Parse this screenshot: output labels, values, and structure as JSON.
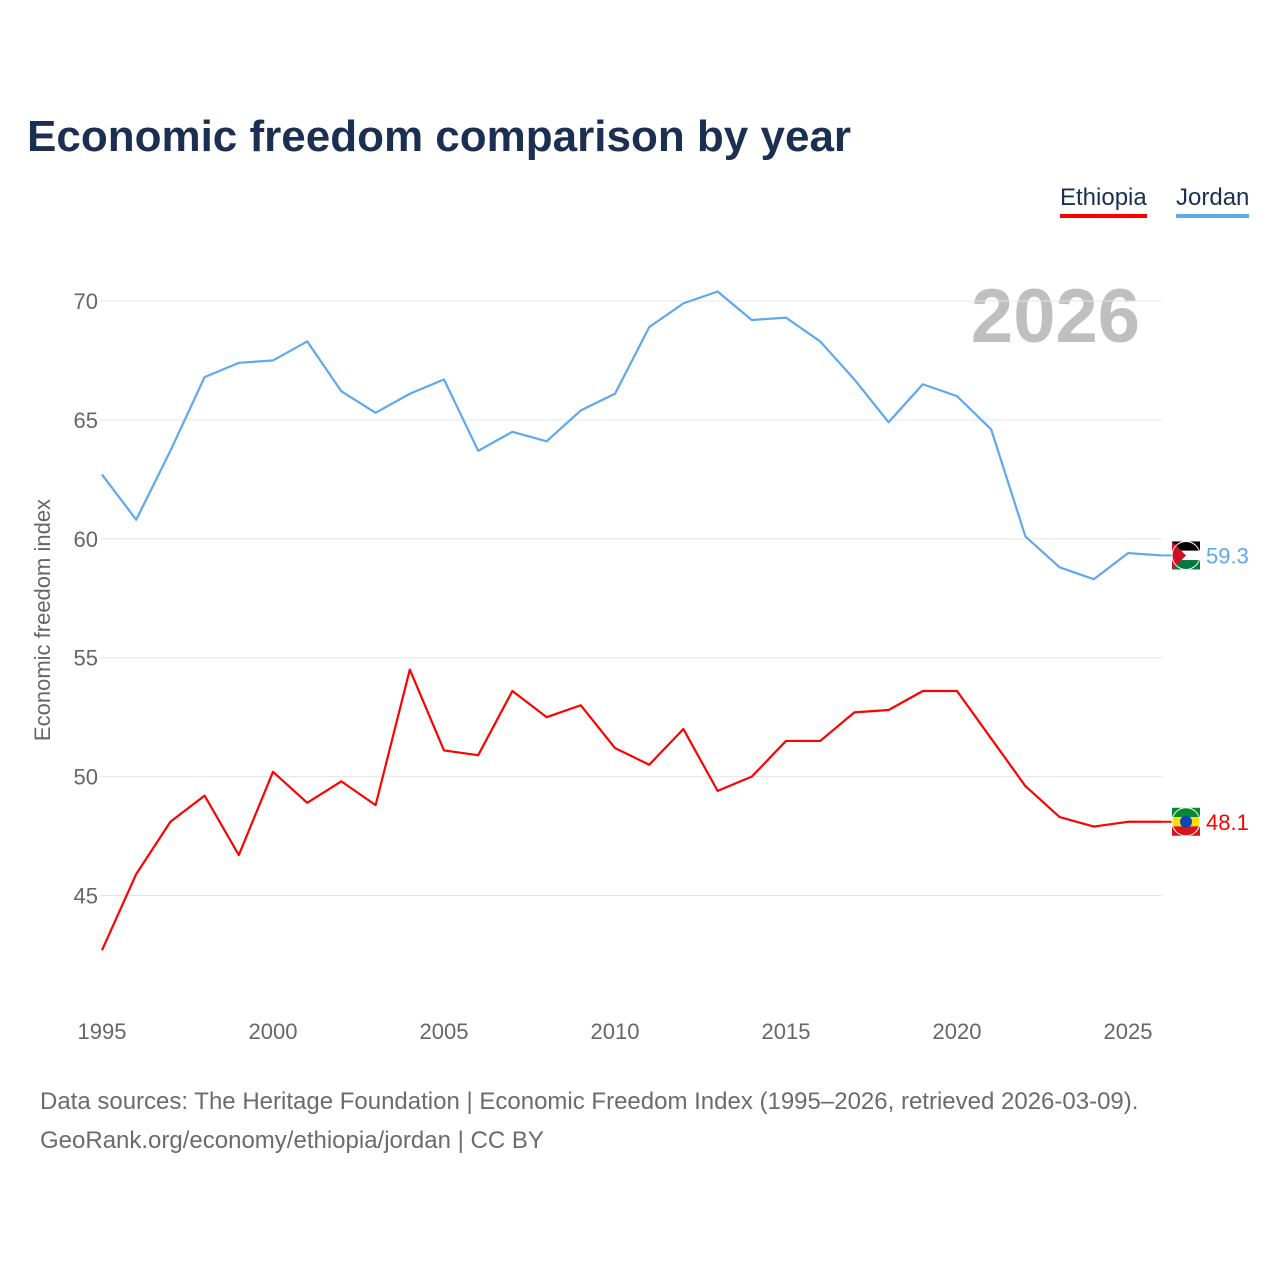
{
  "title": "Economic freedom comparison by year",
  "year_badge": "2026",
  "sources": {
    "line1": "Data sources: The Heritage Foundation | Economic Freedom Index (1995–2026, retrieved 2026-03-09).",
    "line2": "GeoRank.org/economy/ethiopia/jordan | CC BY"
  },
  "chart_data": {
    "type": "line",
    "title": "Economic freedom comparison by year",
    "xlabel": "",
    "ylabel": "Economic freedom index",
    "x": [
      1995,
      1996,
      1997,
      1998,
      1999,
      2000,
      2001,
      2002,
      2003,
      2004,
      2005,
      2006,
      2007,
      2008,
      2009,
      2010,
      2011,
      2012,
      2013,
      2014,
      2015,
      2016,
      2017,
      2018,
      2019,
      2020,
      2021,
      2022,
      2023,
      2024,
      2025,
      2026
    ],
    "xticks": [
      "1995",
      "2000",
      "2005",
      "2010",
      "2015",
      "2020",
      "2025"
    ],
    "yticks": [
      "45",
      "50",
      "55",
      "60",
      "65",
      "70"
    ],
    "ylim": [
      40.6,
      72
    ],
    "grid": true,
    "legend_position": "top-right",
    "series": [
      {
        "name": "Ethiopia",
        "color": "#ff0000",
        "end_label": "48.1",
        "values": [
          42.7,
          45.9,
          48.1,
          49.2,
          46.7,
          50.2,
          48.9,
          49.8,
          48.8,
          54.5,
          51.1,
          50.9,
          53.6,
          52.5,
          53.0,
          51.2,
          50.5,
          52.0,
          49.4,
          50.0,
          51.5,
          51.5,
          52.7,
          52.8,
          53.6,
          53.6,
          51.6,
          49.6,
          48.3,
          47.9,
          48.1,
          48.1
        ]
      },
      {
        "name": "Jordan",
        "color": "#5ea8ee",
        "end_label": "59.3",
        "values": [
          62.7,
          60.8,
          63.7,
          66.8,
          67.4,
          67.5,
          68.3,
          66.2,
          65.3,
          66.1,
          66.7,
          63.7,
          64.5,
          64.1,
          65.4,
          66.1,
          68.9,
          69.9,
          70.4,
          69.2,
          69.3,
          68.3,
          66.7,
          64.9,
          66.5,
          66.0,
          64.6,
          60.1,
          58.8,
          58.3,
          59.4,
          59.3
        ]
      }
    ]
  }
}
